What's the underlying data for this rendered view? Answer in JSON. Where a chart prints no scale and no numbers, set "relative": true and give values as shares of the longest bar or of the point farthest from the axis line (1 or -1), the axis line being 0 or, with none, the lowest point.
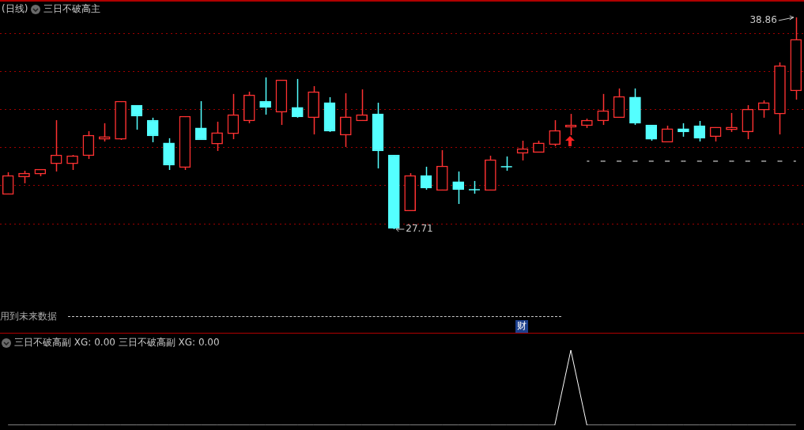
{
  "chart_data": [
    {
      "type": "candlestick",
      "title": "(日线)",
      "subtitle": "三日不破高主",
      "categories": [
        null,
        null,
        null,
        null,
        null,
        null,
        null,
        null,
        null,
        null,
        null,
        null,
        null,
        null,
        null,
        null,
        null,
        null,
        null,
        null,
        null,
        null,
        null,
        null,
        null,
        null,
        null,
        null,
        null,
        null,
        null,
        null,
        null,
        null,
        null,
        null,
        null,
        null,
        null,
        null,
        null,
        null,
        null,
        null,
        null,
        null,
        null,
        null,
        null,
        null
      ],
      "ohlc": [
        [
          29.54,
          30.71,
          29.54,
          30.54
        ],
        [
          30.46,
          30.79,
          30.13,
          30.66
        ],
        [
          30.62,
          30.87,
          30.5,
          30.87
        ],
        [
          31.16,
          33.45,
          30.75,
          31.62
        ],
        [
          31.16,
          31.62,
          30.83,
          31.58
        ],
        [
          31.58,
          32.87,
          31.41,
          32.66
        ],
        [
          32.45,
          33.29,
          32.33,
          32.58
        ],
        [
          32.45,
          34.45,
          32.41,
          34.45
        ],
        [
          34.24,
          34.24,
          32.95,
          33.66
        ],
        [
          33.45,
          33.58,
          32.29,
          32.62
        ],
        [
          32.25,
          32.5,
          30.83,
          31.08
        ],
        [
          30.96,
          33.66,
          30.83,
          33.66
        ],
        [
          33.04,
          34.45,
          32.41,
          32.41
        ],
        [
          32.2,
          33.37,
          31.83,
          32.79
        ],
        [
          32.74,
          34.83,
          32.45,
          33.74
        ],
        [
          33.41,
          34.95,
          33.29,
          34.78
        ],
        [
          34.45,
          35.7,
          33.74,
          34.12
        ],
        [
          33.87,
          35.57,
          33.2,
          35.57
        ],
        [
          34.12,
          35.62,
          33.58,
          33.62
        ],
        [
          33.58,
          35.24,
          32.7,
          34.95
        ],
        [
          34.37,
          34.66,
          32.83,
          32.87
        ],
        [
          32.66,
          34.87,
          32.04,
          33.62
        ],
        [
          33.41,
          35.07,
          33.41,
          33.74
        ],
        [
          33.78,
          34.37,
          30.91,
          31.83
        ],
        [
          31.62,
          31.62,
          27.71,
          27.75
        ],
        [
          28.67,
          30.66,
          28.67,
          30.54
        ],
        [
          30.54,
          31.0,
          29.79,
          29.88
        ],
        [
          29.75,
          31.87,
          29.75,
          31.04
        ],
        [
          30.21,
          30.75,
          29.04,
          29.79
        ],
        [
          29.79,
          30.25,
          29.58,
          29.79
        ],
        [
          29.75,
          31.58,
          29.75,
          31.37
        ],
        [
          31.0,
          31.54,
          30.79,
          31.0
        ],
        [
          31.71,
          32.37,
          31.33,
          31.95
        ],
        [
          31.75,
          32.37,
          31.75,
          32.25
        ],
        [
          32.16,
          33.45,
          32.08,
          32.91
        ],
        [
          33.08,
          33.78,
          32.66,
          33.2
        ],
        [
          33.16,
          33.53,
          33.04,
          33.45
        ],
        [
          33.41,
          34.83,
          33.2,
          33.95
        ],
        [
          33.58,
          35.12,
          33.58,
          34.7
        ],
        [
          34.66,
          35.12,
          33.2,
          33.29
        ],
        [
          33.2,
          33.2,
          32.37,
          32.45
        ],
        [
          32.29,
          33.16,
          32.29,
          33.0
        ],
        [
          33.0,
          33.29,
          32.58,
          32.83
        ],
        [
          33.16,
          33.41,
          32.33,
          32.5
        ],
        [
          32.58,
          33.08,
          32.33,
          33.08
        ],
        [
          32.95,
          33.83,
          32.83,
          33.08
        ],
        [
          32.83,
          34.24,
          32.45,
          34.03
        ],
        [
          33.99,
          34.49,
          33.58,
          34.37
        ],
        [
          33.78,
          36.49,
          32.7,
          36.32
        ],
        [
          34.99,
          38.86,
          34.53,
          37.7
        ]
      ],
      "colors": [
        "#ff3232",
        "#ff3232",
        "#ff3232",
        "#ff3232",
        "#ff3232",
        "#ff3232",
        "#ff3232",
        "#ff3232",
        "#54ffff",
        "#54ffff",
        "#54ffff",
        "#ff3232",
        "#54ffff",
        "#ff3232",
        "#ff3232",
        "#ff3232",
        "#54ffff",
        "#ff3232",
        "#54ffff",
        "#ff3232",
        "#54ffff",
        "#ff3232",
        "#ff3232",
        "#54ffff",
        "#54ffff",
        "#ff3232",
        "#54ffff",
        "#ff3232",
        "#54ffff",
        "#54ffff",
        "#ff3232",
        "#54ffff",
        "#ff3232",
        "#ff3232",
        "#ff3232",
        "#ff3232",
        "#ff3232",
        "#ff3232",
        "#ff3232",
        "#54ffff",
        "#54ffff",
        "#ff3232",
        "#54ffff",
        "#54ffff",
        "#ff3232",
        "#ff3232",
        "#ff3232",
        "#ff3232",
        "#ff3232",
        "#ff3232"
      ],
      "series": [
        {
          "type": "line",
          "color": "#ffffff",
          "line_style": "dashed",
          "values": [
            null,
            null,
            null,
            null,
            null,
            null,
            null,
            null,
            null,
            null,
            null,
            null,
            null,
            null,
            null,
            null,
            null,
            null,
            null,
            null,
            null,
            null,
            null,
            null,
            null,
            null,
            null,
            null,
            null,
            null,
            null,
            null,
            null,
            null,
            null,
            null,
            31.29,
            31.29,
            31.29,
            31.29,
            31.29,
            31.29,
            31.29,
            31.29,
            31.29,
            31.29,
            31.29,
            31.29,
            31.29,
            31.29
          ]
        }
      ],
      "yticks": [
        {
          "value": 28,
          "label": null
        },
        {
          "value": 30,
          "label": null
        },
        {
          "value": 32,
          "label": null
        },
        {
          "value": 34,
          "label": null
        },
        {
          "value": 36,
          "label": null
        },
        {
          "value": 38,
          "label": null
        }
      ],
      "grid": "y",
      "annotations": [
        "38.86",
        "27.71",
        "用到未来数据",
        "财"
      ]
    },
    {
      "type": "line",
      "title": "三日不破高副 XG: 0.00 三日不破高副 XG: 0.00",
      "relative": true,
      "color": "#ffffff",
      "marker": "none",
      "categories": [
        null,
        null,
        null,
        null,
        null,
        null,
        null,
        null,
        null,
        null,
        null,
        null,
        null,
        null,
        null,
        null,
        null,
        null,
        null,
        null,
        null,
        null,
        null,
        null,
        null,
        null,
        null,
        null,
        null,
        null,
        null,
        null,
        null,
        null,
        null,
        null,
        null,
        null,
        null,
        null,
        null,
        null,
        null,
        null,
        null,
        null,
        null,
        null,
        null,
        null
      ],
      "values": [
        0,
        0,
        0,
        0,
        0,
        0,
        0,
        0,
        0,
        0,
        0,
        0,
        0,
        0,
        0,
        0,
        0,
        0,
        0,
        0,
        0,
        0,
        0,
        0,
        0,
        0,
        0,
        0,
        0,
        0,
        0,
        0,
        0,
        0,
        0,
        1,
        0,
        0,
        0,
        0,
        0,
        0,
        0,
        0,
        0,
        0,
        0,
        0,
        0,
        0
      ]
    }
  ]
}
